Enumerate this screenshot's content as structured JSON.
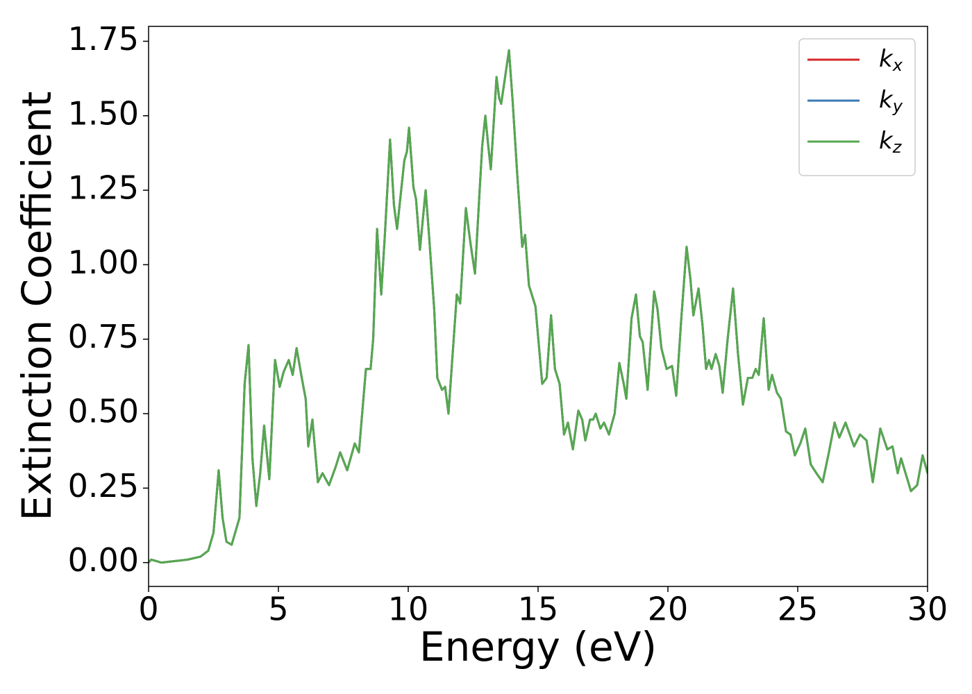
{
  "chart_data": {
    "type": "line",
    "xlabel": "Energy (eV)",
    "ylabel": "Extinction Coefficient",
    "xlim": [
      0,
      30
    ],
    "xticks": [
      0,
      5,
      10,
      15,
      20,
      25,
      30
    ],
    "ylim": [
      -0.08,
      1.8
    ],
    "yticks": [
      {
        "value": 0,
        "label": "0.00"
      },
      0.25,
      {
        "value": 0.5,
        "label": "0.50"
      },
      0.75,
      {
        "value": 1,
        "label": "1.00"
      },
      1.25,
      {
        "value": 1.5,
        "label": "1.50"
      },
      1.75
    ],
    "legend": "upper right",
    "x": [
      0,
      0.1,
      0.5,
      1,
      1.5,
      2,
      2.3,
      2.5,
      2.7,
      2.85,
      3,
      3.2,
      3.5,
      3.7,
      3.85,
      4,
      4.15,
      4.3,
      4.45,
      4.65,
      4.87,
      5.05,
      5.2,
      5.4,
      5.55,
      5.7,
      5.9,
      6.05,
      6.15,
      6.31,
      6.52,
      6.7,
      6.95,
      7.2,
      7.38,
      7.65,
      7.94,
      8.1,
      8.37,
      8.55,
      8.65,
      8.8,
      8.96,
      9.1,
      9.3,
      9.45,
      9.57,
      9.85,
      9.95,
      10.03,
      10.2,
      10.3,
      10.45,
      10.67,
      10.8,
      11,
      11.12,
      11.3,
      11.42,
      11.55,
      11.75,
      11.87,
      12,
      12.22,
      12.4,
      12.57,
      12.75,
      12.85,
      12.97,
      13.08,
      13.18,
      13.4,
      13.5,
      13.58,
      13.88,
      14.02,
      14.2,
      14.39,
      14.5,
      14.65,
      14.9,
      15.16,
      15.33,
      15.5,
      15.65,
      15.83,
      16,
      16.15,
      16.34,
      16.55,
      16.7,
      16.82,
      17,
      17.12,
      17.22,
      17.4,
      17.54,
      17.73,
      17.95,
      18.13,
      18.3,
      18.4,
      18.6,
      18.77,
      18.92,
      19.03,
      19.22,
      19.47,
      19.6,
      19.75,
      19.95,
      20.16,
      20.32,
      20.5,
      20.72,
      20.87,
      20.98,
      21.18,
      21.33,
      21.47,
      21.58,
      21.68,
      21.84,
      21.98,
      22.11,
      22.3,
      22.51,
      22.7,
      22.89,
      23.08,
      23.25,
      23.38,
      23.5,
      23.69,
      23.88,
      24.01,
      24.2,
      24.35,
      24.55,
      24.72,
      24.89,
      25.1,
      25.29,
      25.5,
      25.72,
      25.96,
      26.2,
      26.42,
      26.6,
      26.84,
      27.17,
      27.4,
      27.65,
      27.89,
      28.18,
      28.45,
      28.65,
      28.85,
      28.98,
      29.36,
      29.6,
      29.81,
      30
    ],
    "series": [
      {
        "name": "kx",
        "color": "#d62728",
        "values": [
          0,
          0.01,
          0,
          0.005,
          0.01,
          0.02,
          0.04,
          0.1,
          0.31,
          0.15,
          0.07,
          0.06,
          0.15,
          0.6,
          0.73,
          0.35,
          0.19,
          0.3,
          0.46,
          0.28,
          0.68,
          0.59,
          0.64,
          0.68,
          0.63,
          0.72,
          0.62,
          0.55,
          0.39,
          0.48,
          0.27,
          0.3,
          0.26,
          0.32,
          0.37,
          0.31,
          0.4,
          0.37,
          0.65,
          0.65,
          0.75,
          1.12,
          0.9,
          1.1,
          1.42,
          1.2,
          1.12,
          1.35,
          1.38,
          1.46,
          1.26,
          1.22,
          1.05,
          1.25,
          1.1,
          0.85,
          0.62,
          0.58,
          0.59,
          0.5,
          0.75,
          0.9,
          0.87,
          1.19,
          1.07,
          0.97,
          1.25,
          1.4,
          1.5,
          1.4,
          1.32,
          1.63,
          1.56,
          1.54,
          1.72,
          1.55,
          1.3,
          1.06,
          1.1,
          0.93,
          0.86,
          0.6,
          0.62,
          0.83,
          0.65,
          0.6,
          0.43,
          0.47,
          0.38,
          0.51,
          0.48,
          0.41,
          0.48,
          0.48,
          0.5,
          0.45,
          0.47,
          0.43,
          0.5,
          0.67,
          0.6,
          0.55,
          0.82,
          0.9,
          0.76,
          0.74,
          0.58,
          0.91,
          0.85,
          0.72,
          0.65,
          0.66,
          0.56,
          0.8,
          1.06,
          0.95,
          0.83,
          0.92,
          0.8,
          0.65,
          0.68,
          0.65,
          0.7,
          0.66,
          0.57,
          0.75,
          0.92,
          0.7,
          0.53,
          0.62,
          0.62,
          0.65,
          0.63,
          0.82,
          0.58,
          0.63,
          0.57,
          0.55,
          0.44,
          0.43,
          0.36,
          0.4,
          0.45,
          0.33,
          0.3,
          0.27,
          0.37,
          0.47,
          0.42,
          0.47,
          0.39,
          0.43,
          0.41,
          0.27,
          0.45,
          0.38,
          0.39,
          0.3,
          0.35,
          0.24,
          0.26,
          0.36,
          0.3
        ]
      },
      {
        "name": "ky",
        "color": "#3a78b5",
        "values": [
          0,
          0.01,
          0,
          0.005,
          0.01,
          0.02,
          0.04,
          0.1,
          0.31,
          0.15,
          0.07,
          0.06,
          0.15,
          0.6,
          0.73,
          0.35,
          0.19,
          0.3,
          0.46,
          0.28,
          0.68,
          0.59,
          0.64,
          0.68,
          0.63,
          0.72,
          0.62,
          0.55,
          0.39,
          0.48,
          0.27,
          0.3,
          0.26,
          0.32,
          0.37,
          0.31,
          0.4,
          0.37,
          0.65,
          0.65,
          0.75,
          1.12,
          0.9,
          1.1,
          1.42,
          1.2,
          1.12,
          1.35,
          1.38,
          1.46,
          1.26,
          1.22,
          1.05,
          1.25,
          1.1,
          0.85,
          0.62,
          0.58,
          0.59,
          0.5,
          0.75,
          0.9,
          0.87,
          1.19,
          1.07,
          0.97,
          1.25,
          1.4,
          1.5,
          1.4,
          1.32,
          1.63,
          1.56,
          1.54,
          1.72,
          1.55,
          1.3,
          1.06,
          1.1,
          0.93,
          0.86,
          0.6,
          0.62,
          0.83,
          0.65,
          0.6,
          0.43,
          0.47,
          0.38,
          0.51,
          0.48,
          0.41,
          0.48,
          0.48,
          0.5,
          0.45,
          0.47,
          0.43,
          0.5,
          0.67,
          0.6,
          0.55,
          0.82,
          0.9,
          0.76,
          0.74,
          0.58,
          0.91,
          0.85,
          0.72,
          0.65,
          0.66,
          0.56,
          0.8,
          1.06,
          0.95,
          0.83,
          0.92,
          0.8,
          0.65,
          0.68,
          0.65,
          0.7,
          0.66,
          0.57,
          0.75,
          0.92,
          0.7,
          0.53,
          0.62,
          0.62,
          0.65,
          0.63,
          0.82,
          0.58,
          0.63,
          0.57,
          0.55,
          0.44,
          0.43,
          0.36,
          0.4,
          0.45,
          0.33,
          0.3,
          0.27,
          0.37,
          0.47,
          0.42,
          0.47,
          0.39,
          0.43,
          0.41,
          0.27,
          0.45,
          0.38,
          0.39,
          0.3,
          0.35,
          0.24,
          0.26,
          0.36,
          0.3
        ]
      },
      {
        "name": "kz",
        "color": "#55a84f",
        "values": [
          0,
          0.01,
          0,
          0.005,
          0.01,
          0.02,
          0.04,
          0.1,
          0.31,
          0.15,
          0.07,
          0.06,
          0.15,
          0.6,
          0.73,
          0.35,
          0.19,
          0.3,
          0.46,
          0.28,
          0.68,
          0.59,
          0.64,
          0.68,
          0.63,
          0.72,
          0.62,
          0.55,
          0.39,
          0.48,
          0.27,
          0.3,
          0.26,
          0.32,
          0.37,
          0.31,
          0.4,
          0.37,
          0.65,
          0.65,
          0.75,
          1.12,
          0.9,
          1.1,
          1.42,
          1.2,
          1.12,
          1.35,
          1.38,
          1.46,
          1.26,
          1.22,
          1.05,
          1.25,
          1.1,
          0.85,
          0.62,
          0.58,
          0.59,
          0.5,
          0.75,
          0.9,
          0.87,
          1.19,
          1.07,
          0.97,
          1.25,
          1.4,
          1.5,
          1.4,
          1.32,
          1.63,
          1.56,
          1.54,
          1.72,
          1.55,
          1.3,
          1.06,
          1.1,
          0.93,
          0.86,
          0.6,
          0.62,
          0.83,
          0.65,
          0.6,
          0.43,
          0.47,
          0.38,
          0.51,
          0.48,
          0.41,
          0.48,
          0.48,
          0.5,
          0.45,
          0.47,
          0.43,
          0.5,
          0.67,
          0.6,
          0.55,
          0.82,
          0.9,
          0.76,
          0.74,
          0.58,
          0.91,
          0.85,
          0.72,
          0.65,
          0.66,
          0.56,
          0.8,
          1.06,
          0.95,
          0.83,
          0.92,
          0.8,
          0.65,
          0.68,
          0.65,
          0.7,
          0.66,
          0.57,
          0.75,
          0.92,
          0.7,
          0.53,
          0.62,
          0.62,
          0.65,
          0.63,
          0.82,
          0.58,
          0.63,
          0.57,
          0.55,
          0.44,
          0.43,
          0.36,
          0.4,
          0.45,
          0.33,
          0.3,
          0.27,
          0.37,
          0.47,
          0.42,
          0.47,
          0.39,
          0.43,
          0.41,
          0.27,
          0.45,
          0.38,
          0.39,
          0.3,
          0.35,
          0.24,
          0.26,
          0.36,
          0.3
        ]
      }
    ]
  }
}
